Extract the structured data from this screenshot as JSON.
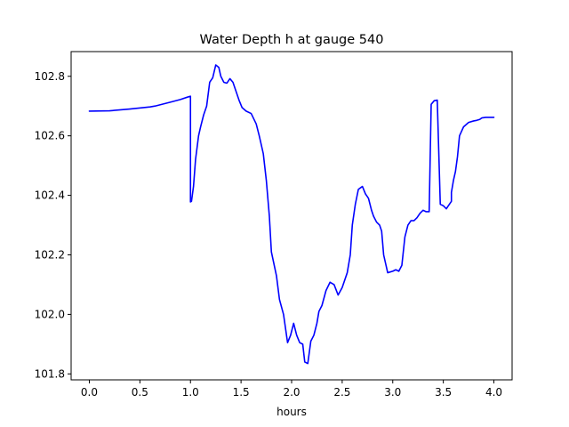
{
  "chart_data": {
    "type": "line",
    "title": "Water Depth h at gauge 540",
    "xlabel": "hours",
    "ylabel": "",
    "xlim": [
      -0.18,
      4.18
    ],
    "ylim": [
      101.78,
      102.883
    ],
    "grid": false,
    "xticks": [
      0.0,
      0.5,
      1.0,
      1.5,
      2.0,
      2.5,
      3.0,
      3.5,
      4.0
    ],
    "xtick_labels": [
      "0.0",
      "0.5",
      "1.0",
      "1.5",
      "2.0",
      "2.5",
      "3.0",
      "3.5",
      "4.0"
    ],
    "yticks": [
      101.8,
      102.0,
      102.2,
      102.4,
      102.6,
      102.8
    ],
    "ytick_labels": [
      "101.8",
      "102.0",
      "102.2",
      "102.4",
      "102.6",
      "102.8"
    ],
    "series": [
      {
        "color": "#0000ff",
        "x": [
          0.0,
          0.2,
          0.4,
          0.6,
          0.65,
          0.8,
          0.9,
          0.97,
          1.0,
          1.0,
          1.01,
          1.03,
          1.05,
          1.08,
          1.1,
          1.13,
          1.16,
          1.19,
          1.22,
          1.25,
          1.28,
          1.3,
          1.33,
          1.36,
          1.39,
          1.42,
          1.45,
          1.48,
          1.51,
          1.55,
          1.6,
          1.65,
          1.68,
          1.72,
          1.75,
          1.78,
          1.8,
          1.85,
          1.88,
          1.92,
          1.96,
          1.99,
          2.02,
          2.05,
          2.08,
          2.11,
          2.13,
          2.16,
          2.19,
          2.22,
          2.25,
          2.27,
          2.3,
          2.34,
          2.38,
          2.42,
          2.46,
          2.5,
          2.55,
          2.58,
          2.6,
          2.63,
          2.66,
          2.7,
          2.73,
          2.76,
          2.79,
          2.81,
          2.84,
          2.87,
          2.89,
          2.91,
          2.95,
          3.0,
          3.03,
          3.06,
          3.09,
          3.12,
          3.15,
          3.18,
          3.21,
          3.24,
          3.27,
          3.3,
          3.33,
          3.36,
          3.38,
          3.41,
          3.44,
          3.47,
          3.5,
          3.53,
          3.54,
          3.58,
          3.58,
          3.6,
          3.62,
          3.64,
          3.66,
          3.7,
          3.75,
          3.8,
          3.83,
          3.86,
          3.88,
          3.92,
          3.96,
          4.0
        ],
        "y": [
          102.683,
          102.684,
          102.69,
          102.697,
          102.7,
          102.713,
          102.722,
          102.73,
          102.733,
          102.378,
          102.38,
          102.43,
          102.52,
          102.6,
          102.63,
          102.67,
          102.7,
          102.78,
          102.795,
          102.838,
          102.83,
          102.8,
          102.78,
          102.777,
          102.792,
          102.78,
          102.75,
          102.72,
          102.695,
          102.683,
          102.675,
          102.64,
          102.6,
          102.54,
          102.45,
          102.33,
          102.21,
          102.13,
          102.05,
          102.0,
          101.905,
          101.93,
          101.97,
          101.93,
          101.905,
          101.9,
          101.84,
          101.835,
          101.91,
          101.93,
          101.97,
          102.01,
          102.03,
          102.08,
          102.108,
          102.1,
          102.065,
          102.09,
          102.14,
          102.2,
          102.3,
          102.37,
          102.42,
          102.43,
          102.405,
          102.39,
          102.35,
          102.33,
          102.31,
          102.3,
          102.28,
          102.2,
          102.14,
          102.145,
          102.15,
          102.145,
          102.165,
          102.26,
          102.3,
          102.315,
          102.315,
          102.325,
          102.34,
          102.35,
          102.345,
          102.345,
          102.706,
          102.718,
          102.72,
          102.37,
          102.365,
          102.355,
          102.36,
          102.38,
          102.41,
          102.45,
          102.48,
          102.53,
          102.6,
          102.63,
          102.645,
          102.65,
          102.652,
          102.655,
          102.66,
          102.662,
          102.662,
          102.662
        ]
      }
    ]
  }
}
